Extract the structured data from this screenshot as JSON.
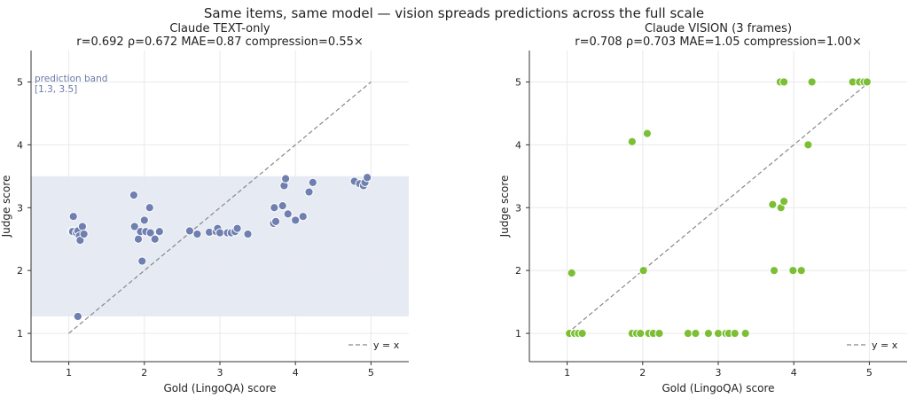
{
  "figure": {
    "suptitle": "Same items, same model — vision spreads predictions across the full scale"
  },
  "chart_data": [
    {
      "type": "scatter",
      "title": "Claude TEXT-only",
      "subtitle": "r=0.692  ρ=0.672  MAE=0.87  compression=0.55×",
      "xlabel": "Gold (LingoQA) score",
      "ylabel": "Judge score",
      "xlim": [
        0.5,
        5.5
      ],
      "ylim": [
        0.55,
        5.5
      ],
      "xticks": [
        "1",
        "2",
        "3",
        "4",
        "5"
      ],
      "yticks": [
        "1",
        "2",
        "3",
        "4",
        "5"
      ],
      "grid": true,
      "point_color": "#6e7fb0",
      "band": {
        "y0": 1.27,
        "y1": 3.5,
        "color": "#e6eaf3",
        "label": "prediction band",
        "range_label": "[1.3, 3.5]"
      },
      "reference_line": {
        "label": "y = x",
        "from": [
          1,
          1
        ],
        "to": [
          5,
          5
        ]
      },
      "legend_position": "bottom-right",
      "points": [
        [
          1.04,
          2.63
        ],
        [
          1.05,
          2.62
        ],
        [
          1.06,
          2.86
        ],
        [
          1.1,
          2.6
        ],
        [
          1.12,
          2.63
        ],
        [
          1.14,
          2.55
        ],
        [
          1.15,
          2.48
        ],
        [
          1.18,
          2.7
        ],
        [
          1.2,
          2.58
        ],
        [
          1.12,
          1.27
        ],
        [
          1.86,
          3.2
        ],
        [
          1.87,
          2.7
        ],
        [
          1.92,
          2.5
        ],
        [
          1.95,
          2.62
        ],
        [
          1.97,
          2.15
        ],
        [
          2.0,
          2.8
        ],
        [
          2.02,
          2.62
        ],
        [
          2.07,
          3.0
        ],
        [
          2.08,
          2.6
        ],
        [
          2.14,
          2.5
        ],
        [
          2.2,
          2.62
        ],
        [
          2.6,
          2.63
        ],
        [
          2.7,
          2.58
        ],
        [
          2.86,
          2.61
        ],
        [
          2.95,
          2.62
        ],
        [
          2.97,
          2.67
        ],
        [
          3.0,
          2.6
        ],
        [
          3.1,
          2.6
        ],
        [
          3.15,
          2.6
        ],
        [
          3.2,
          2.62
        ],
        [
          3.23,
          2.67
        ],
        [
          3.37,
          2.58
        ],
        [
          3.71,
          2.75
        ],
        [
          3.72,
          3.0
        ],
        [
          3.74,
          2.78
        ],
        [
          3.83,
          3.03
        ],
        [
          3.85,
          3.35
        ],
        [
          3.87,
          3.46
        ],
        [
          3.9,
          2.9
        ],
        [
          4.0,
          2.8
        ],
        [
          4.1,
          2.86
        ],
        [
          4.18,
          3.25
        ],
        [
          4.23,
          3.4
        ],
        [
          4.78,
          3.42
        ],
        [
          4.85,
          3.38
        ],
        [
          4.9,
          3.35
        ],
        [
          4.92,
          3.4
        ],
        [
          4.95,
          3.48
        ]
      ]
    },
    {
      "type": "scatter",
      "title": "Claude VISION (3 frames)",
      "subtitle": "r=0.708  ρ=0.703  MAE=1.05  compression=1.00×",
      "xlabel": "Gold (LingoQA) score",
      "ylabel": "Judge score",
      "xlim": [
        0.5,
        5.5
      ],
      "ylim": [
        0.55,
        5.5
      ],
      "xticks": [
        "1",
        "2",
        "3",
        "4",
        "5"
      ],
      "yticks": [
        "1",
        "2",
        "3",
        "4",
        "5"
      ],
      "grid": true,
      "point_color": "#7cbf35",
      "reference_line": {
        "label": "y = x",
        "from": [
          1,
          1
        ],
        "to": [
          5,
          5
        ]
      },
      "legend_position": "bottom-right",
      "points": [
        [
          1.03,
          1.0
        ],
        [
          1.1,
          1.0
        ],
        [
          1.15,
          1.0
        ],
        [
          1.2,
          1.0
        ],
        [
          1.06,
          1.96
        ],
        [
          1.86,
          1.0
        ],
        [
          1.92,
          1.0
        ],
        [
          1.97,
          1.0
        ],
        [
          2.08,
          1.0
        ],
        [
          2.14,
          1.0
        ],
        [
          2.22,
          1.0
        ],
        [
          2.6,
          1.0
        ],
        [
          2.7,
          1.0
        ],
        [
          2.87,
          1.0
        ],
        [
          3.0,
          1.0
        ],
        [
          3.1,
          1.0
        ],
        [
          3.14,
          1.0
        ],
        [
          3.22,
          1.0
        ],
        [
          3.36,
          1.0
        ],
        [
          2.01,
          2.0
        ],
        [
          1.86,
          4.05
        ],
        [
          2.06,
          4.18
        ],
        [
          3.74,
          2.0
        ],
        [
          3.99,
          2.0
        ],
        [
          4.1,
          2.0
        ],
        [
          3.72,
          3.05
        ],
        [
          3.83,
          3.0
        ],
        [
          3.87,
          3.1
        ],
        [
          4.19,
          4.0
        ],
        [
          3.82,
          5.0
        ],
        [
          3.87,
          5.0
        ],
        [
          4.24,
          5.0
        ],
        [
          4.78,
          5.0
        ],
        [
          4.87,
          5.0
        ],
        [
          4.93,
          5.0
        ],
        [
          4.97,
          5.0
        ]
      ]
    }
  ]
}
